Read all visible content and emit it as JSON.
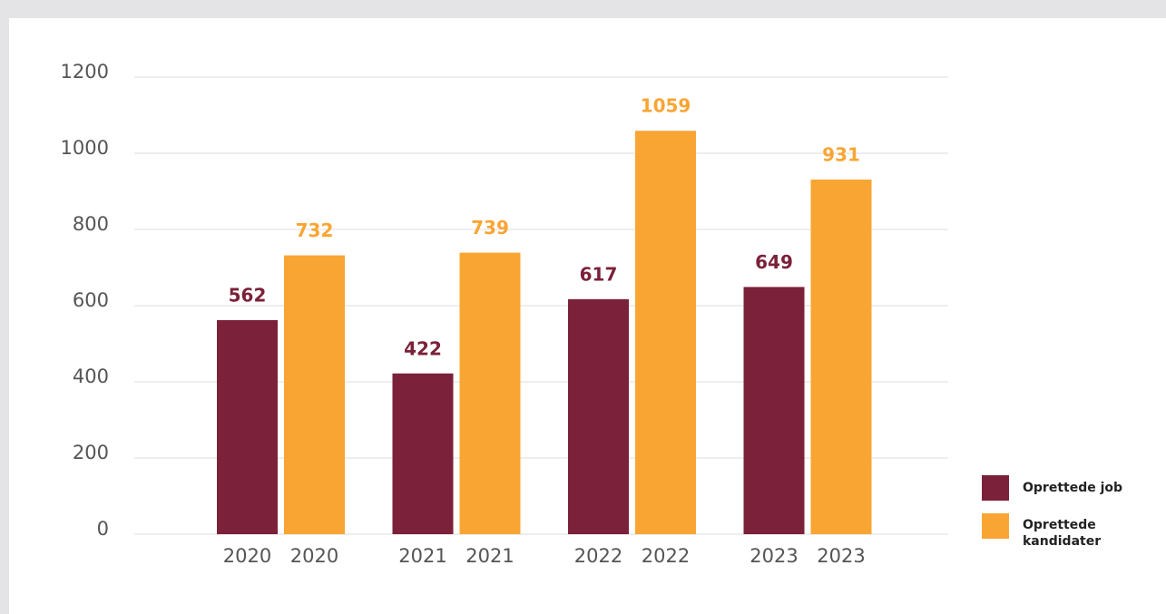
{
  "chart_data": {
    "type": "bar",
    "categories": [
      "2020",
      "2021",
      "2022",
      "2023"
    ],
    "series": [
      {
        "name": "Oprettede job",
        "color": "#7b2139",
        "values": [
          562,
          422,
          617,
          649
        ]
      },
      {
        "name": "Oprettede kandidater",
        "color": "#f9a533",
        "values": [
          732,
          739,
          1059,
          931
        ]
      }
    ],
    "ylim": [
      0,
      1200
    ],
    "yticks": [
      0,
      200,
      400,
      600,
      800,
      1000,
      1200
    ],
    "grid": true,
    "legend": "right"
  }
}
